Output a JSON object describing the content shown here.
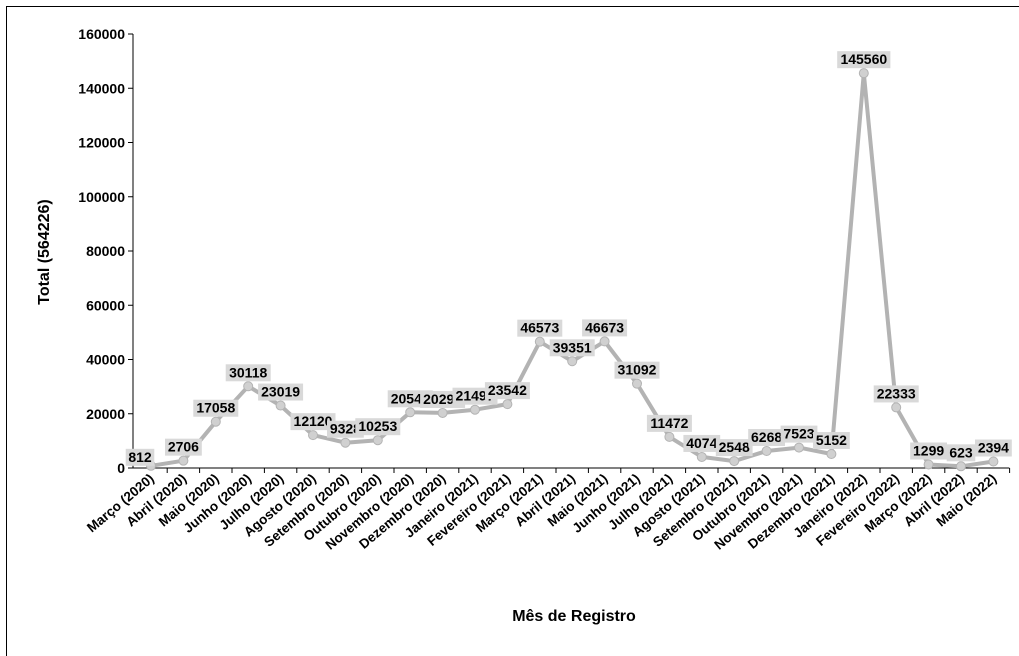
{
  "chart_data": {
    "type": "line",
    "xlabel": "Mês de Registro",
    "ylabel": "Total (564226)",
    "ylim": [
      0,
      160000
    ],
    "yticks": [
      0,
      20000,
      40000,
      60000,
      80000,
      100000,
      120000,
      140000,
      160000
    ],
    "grid": false,
    "legend": "none",
    "line_color": "#b3b3b3",
    "label_bg_color": "#d9d9d9",
    "categories": [
      "Março (2020)",
      "Abril (2020)",
      "Maio (2020)",
      "Junho (2020)",
      "Julho (2020)",
      "Agosto (2020)",
      "Setembro (2020)",
      "Outubro (2020)",
      "Novembro (2020)",
      "Dezembro (2020)",
      "Janeiro (2021)",
      "Fevereiro (2021)",
      "Março (2021)",
      "Abril (2021)",
      "Maio (2021)",
      "Junho (2021)",
      "Julho (2021)",
      "Agosto (2021)",
      "Setembro (2021)",
      "Outubro (2021)",
      "Novembro (2021)",
      "Dezembro (2021)",
      "Janeiro (2022)",
      "Fevereiro (2022)",
      "Março (2022)",
      "Abril (2022)",
      "Maio (2022)"
    ],
    "values": [
      812,
      2706,
      17058,
      30118,
      23019,
      12120,
      9328,
      10253,
      20542,
      20296,
      21497,
      23542,
      46573,
      39351,
      46673,
      31092,
      11472,
      4074,
      2548,
      6268,
      7523,
      5152,
      145560,
      22333,
      1299,
      623,
      2394
    ]
  }
}
